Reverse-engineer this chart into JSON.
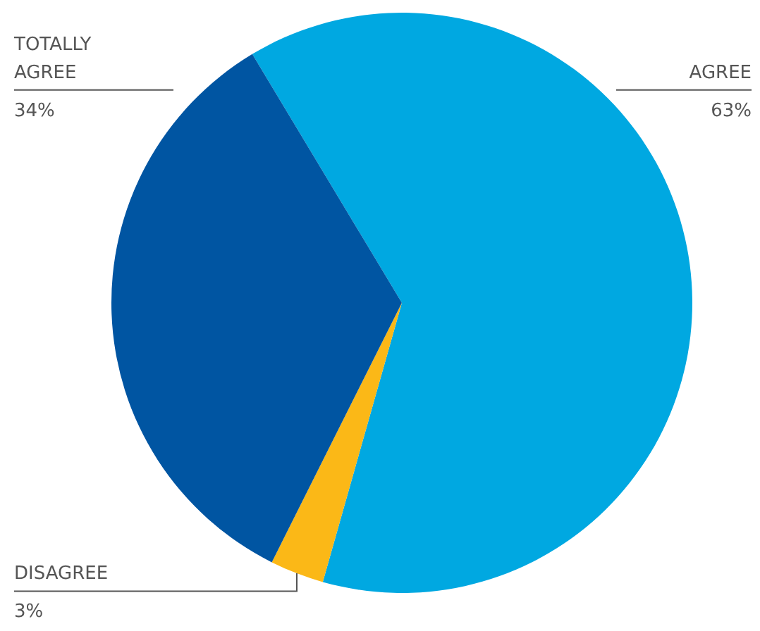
{
  "chart_data": {
    "type": "pie",
    "categories": [
      "AGREE",
      "DISAGREE",
      "TOTALLY AGREE"
    ],
    "values": [
      63,
      3,
      34
    ],
    "colors": [
      "#00a8e1",
      "#fbb817",
      "#0055a2"
    ],
    "value_labels": [
      "63%",
      "3%",
      "34%"
    ]
  }
}
